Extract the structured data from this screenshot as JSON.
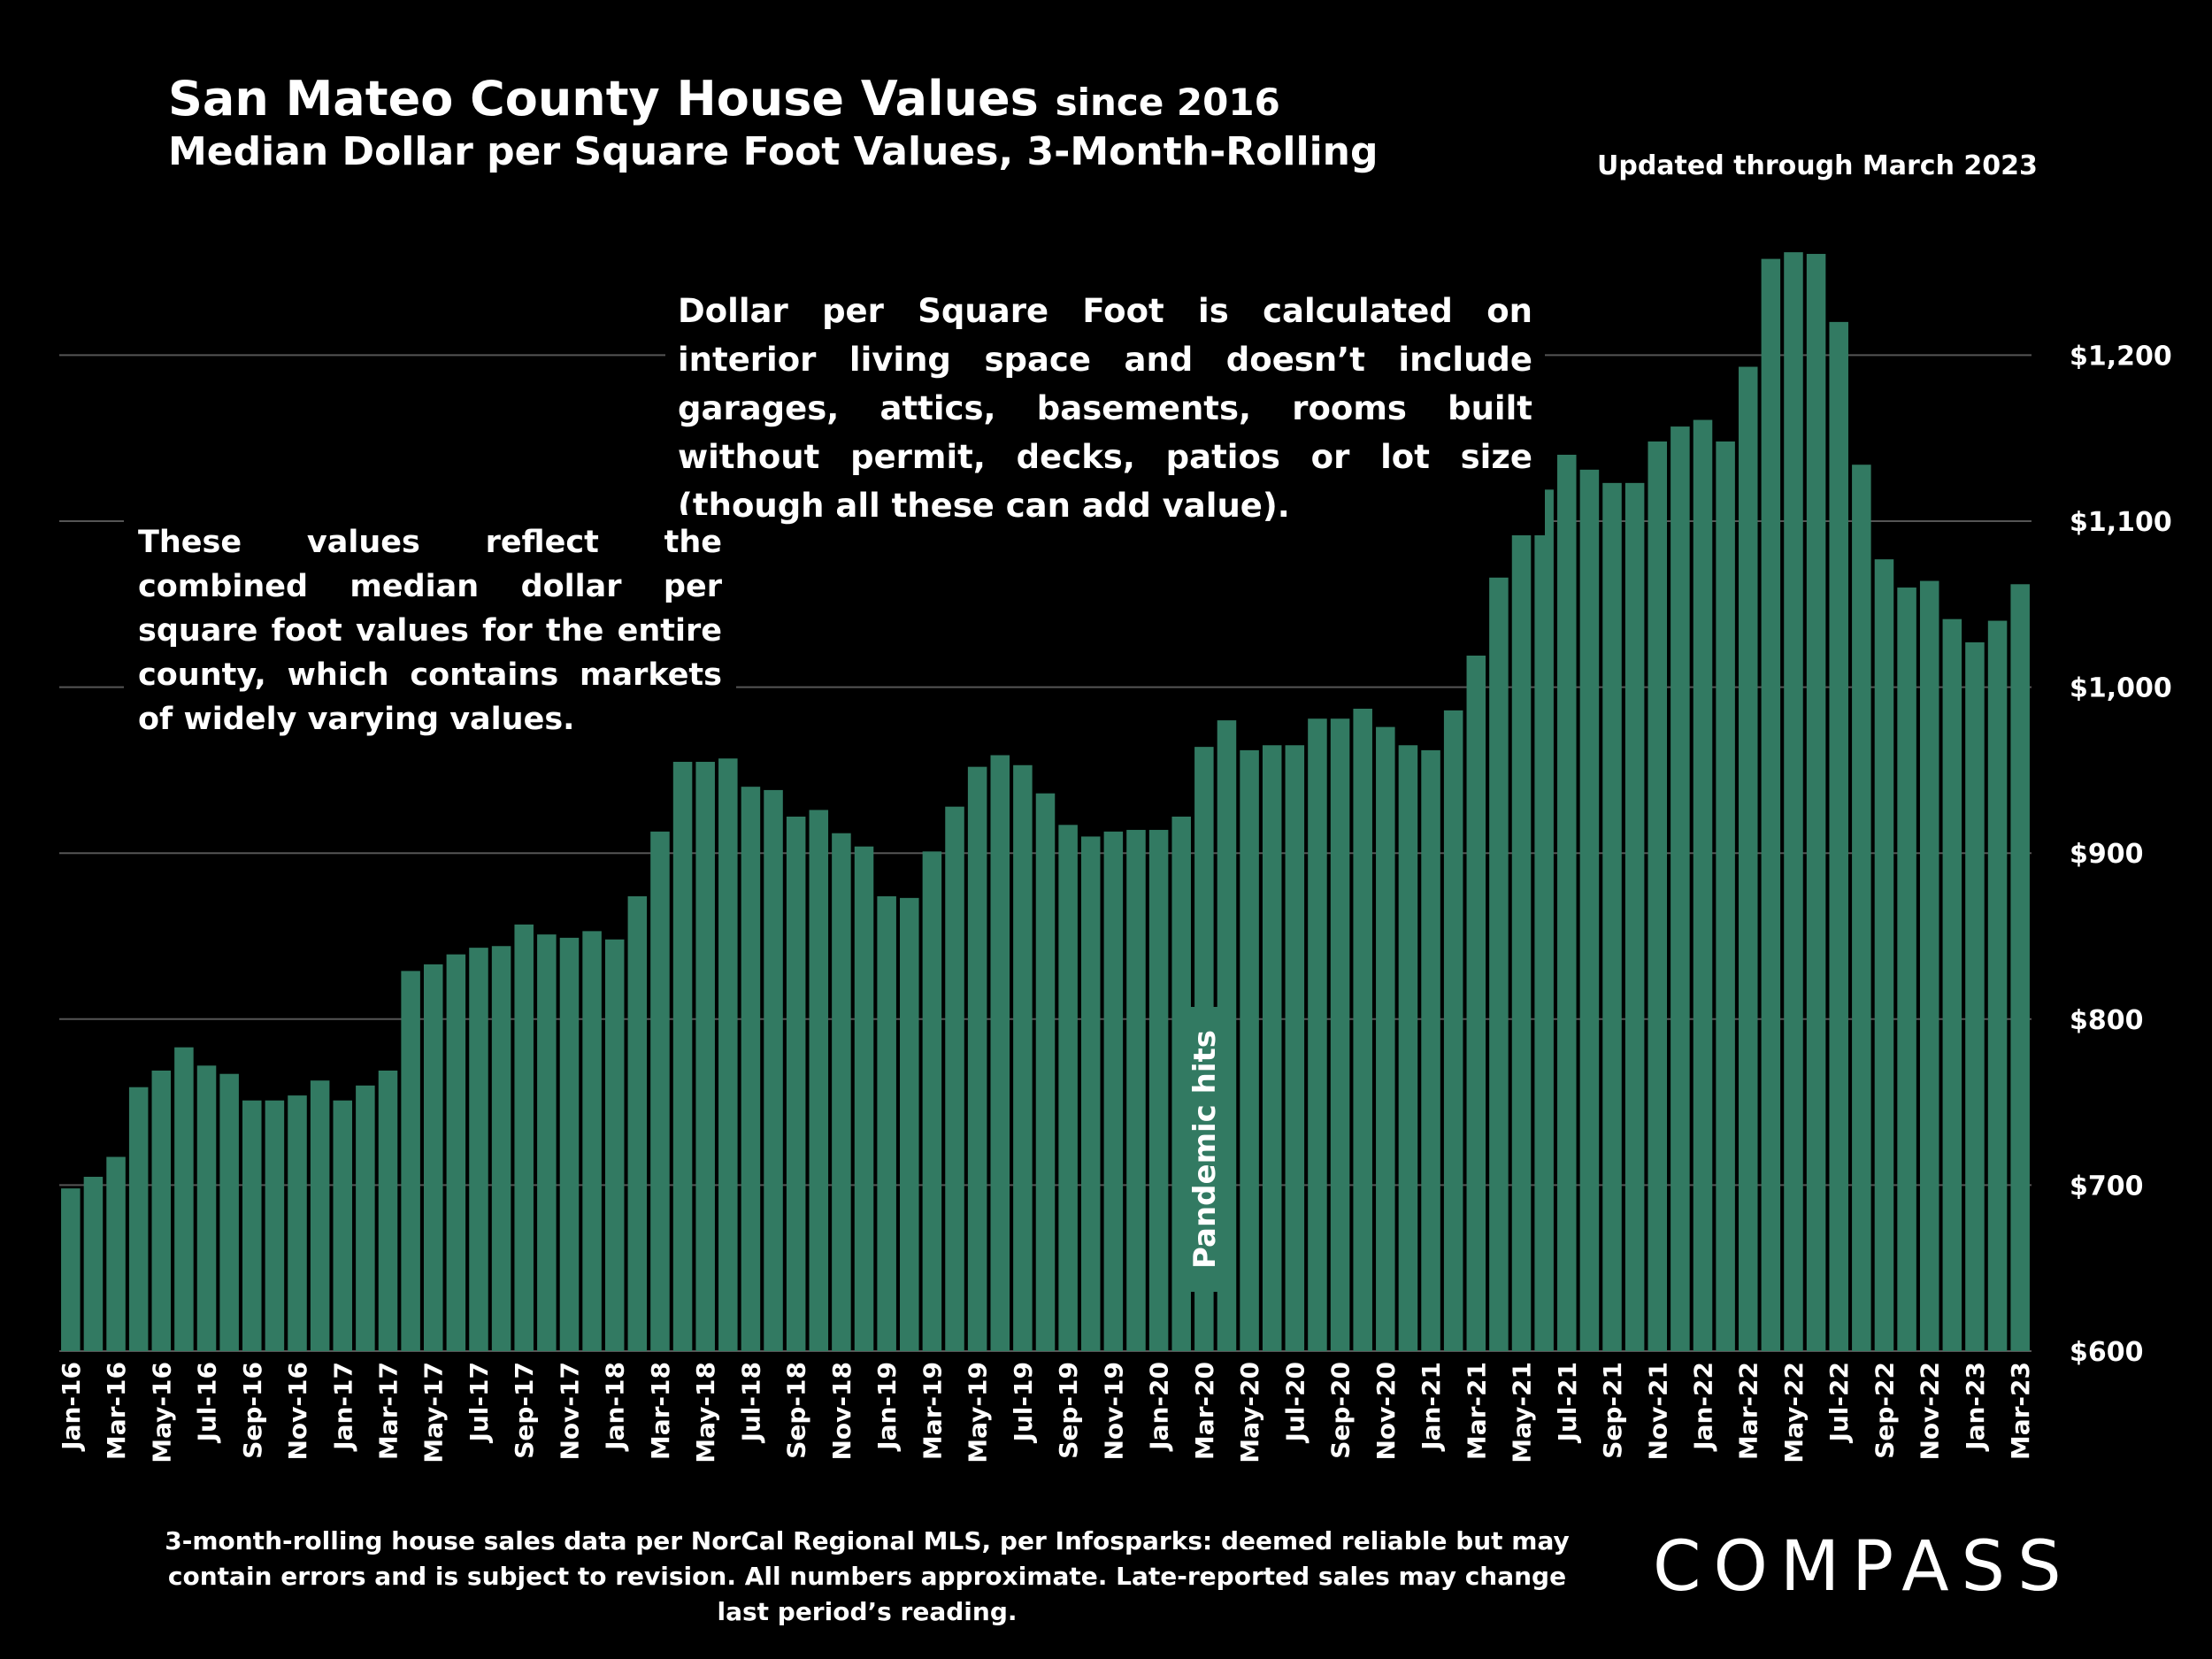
{
  "chart_data": {
    "type": "bar",
    "title": "San Mateo County House Values",
    "title_suffix": "since 2016",
    "subtitle": "Median Dollar per Square Foot Values, 3-Month-Rolling",
    "updated_note": "Updated through March 2023",
    "annotations": [
      "Dollar per Square Foot is calculated on interior living space and doesn’t include garages, attics, basements, rooms built without permit, decks, patios or lot size (though all these can add value).",
      "These values reflect the combined median dollar per square foot values for the entire county, which contains markets of widely varying values."
    ],
    "event_label": "Pandemic hits",
    "footnote": "3-month-rolling house sales data per NorCal Regional MLS, per Infosparks:  deemed reliable but may contain errors and is subject to revision. All numbers approximate. Late-reported sales may change last period’s reading.",
    "logo": "COMPASS",
    "categories": [
      "Jan-16",
      null,
      "Mar-16",
      null,
      "May-16",
      null,
      "Jul-16",
      null,
      "Sep-16",
      null,
      "Nov-16",
      null,
      "Jan-17",
      null,
      "Mar-17",
      null,
      "May-17",
      null,
      "Jul-17",
      null,
      "Sep-17",
      null,
      "Nov-17",
      null,
      "Jan-18",
      null,
      "Mar-18",
      null,
      "May-18",
      null,
      "Jul-18",
      null,
      "Sep-18",
      null,
      "Nov-18",
      null,
      "Jan-19",
      null,
      "Mar-19",
      null,
      "May-19",
      null,
      "Jul-19",
      null,
      "Sep-19",
      null,
      "Nov-19",
      null,
      "Jan-20",
      null,
      "Mar-20",
      null,
      "May-20",
      null,
      "Jul-20",
      null,
      "Sep-20",
      null,
      "Nov-20",
      null,
      "Jan-21",
      null,
      "Mar-21",
      null,
      "May-21",
      null,
      "Jul-21",
      null,
      "Sep-21",
      null,
      "Nov-21",
      null,
      "Jan-22",
      null,
      "Mar-22",
      null,
      "May-22",
      null,
      "Jul-22",
      null,
      "Sep-22",
      null,
      "Nov-22",
      null,
      "Jan-23",
      null,
      "Mar-23"
    ],
    "values": [
      698,
      705,
      717,
      759,
      769,
      783,
      772,
      767,
      751,
      751,
      754,
      763,
      751,
      760,
      769,
      829,
      833,
      839,
      843,
      844,
      857,
      851,
      849,
      853,
      848,
      874,
      913,
      955,
      955,
      957,
      940,
      938,
      922,
      926,
      912,
      904,
      874,
      873,
      901,
      928,
      952,
      959,
      953,
      936,
      917,
      910,
      913,
      914,
      914,
      922,
      964,
      980,
      962,
      965,
      965,
      981,
      981,
      987,
      976,
      965,
      962,
      986,
      1019,
      1066,
      1096,
      1119,
      1140,
      1131,
      1123,
      1123,
      1148,
      1157,
      1161,
      1148,
      1193,
      1258,
      1262,
      1261,
      1220,
      1134,
      1077,
      1060,
      1064,
      1041,
      1027,
      1040,
      1062
    ],
    "color": "#327a62",
    "ylim": [
      600,
      1300
    ],
    "yticks": [
      {
        "value": 600,
        "label": "$600"
      },
      {
        "value": 700,
        "label": "$700"
      },
      {
        "value": 800,
        "label": "$800"
      },
      {
        "value": 900,
        "label": "$900"
      },
      {
        "value": 1000,
        "label": "$1,000"
      },
      {
        "value": 1100,
        "label": "$1,100"
      },
      {
        "value": 1200,
        "label": "$1,200"
      }
    ],
    "grid": true
  }
}
